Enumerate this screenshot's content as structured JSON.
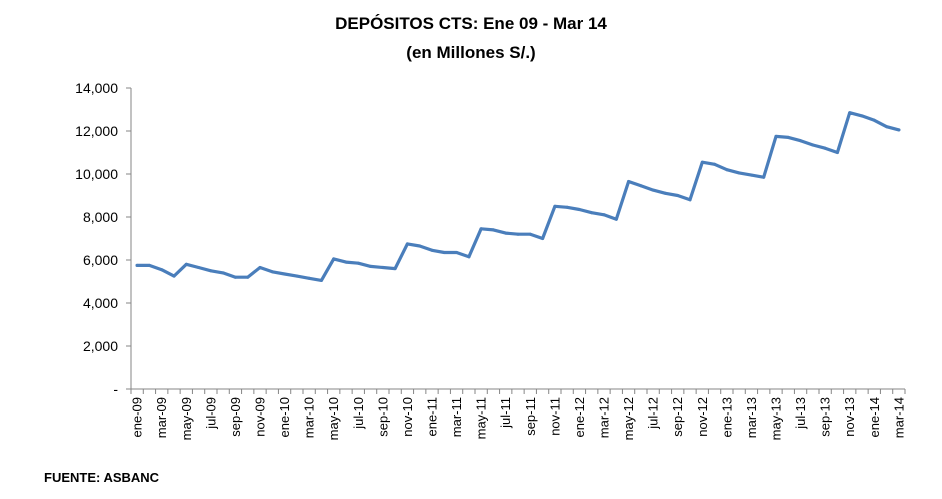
{
  "chart_data": {
    "type": "line",
    "title": "DEPÓSITOS CTS: Ene 09 - Mar 14",
    "subtitle": "(en Millones S/.)",
    "xlabel": "",
    "ylabel": "",
    "ylim": [
      0,
      14000
    ],
    "yticks": [
      0,
      2000,
      4000,
      6000,
      8000,
      10000,
      12000,
      14000
    ],
    "ytick_labels": [
      "-",
      "2,000",
      "4,000",
      "6,000",
      "8,000",
      "10,000",
      "12,000",
      "14,000"
    ],
    "grid": false,
    "line_color": "#4a7ebb",
    "x": [
      "ene-09",
      "feb-09",
      "mar-09",
      "abr-09",
      "may-09",
      "jun-09",
      "jul-09",
      "ago-09",
      "sep-09",
      "oct-09",
      "nov-09",
      "dic-09",
      "ene-10",
      "feb-10",
      "mar-10",
      "abr-10",
      "may-10",
      "jun-10",
      "jul-10",
      "ago-10",
      "sep-10",
      "oct-10",
      "nov-10",
      "dic-10",
      "ene-11",
      "feb-11",
      "mar-11",
      "abr-11",
      "may-11",
      "jun-11",
      "jul-11",
      "ago-11",
      "sep-11",
      "oct-11",
      "nov-11",
      "dic-11",
      "ene-12",
      "feb-12",
      "mar-12",
      "abr-12",
      "may-12",
      "jun-12",
      "jul-12",
      "ago-12",
      "sep-12",
      "oct-12",
      "nov-12",
      "dic-12",
      "ene-13",
      "feb-13",
      "mar-13",
      "abr-13",
      "may-13",
      "jun-13",
      "jul-13",
      "ago-13",
      "sep-13",
      "oct-13",
      "nov-13",
      "dic-13",
      "ene-14",
      "feb-14",
      "mar-14"
    ],
    "x_tick_labels": [
      "ene-09",
      "mar-09",
      "may-09",
      "jul-09",
      "sep-09",
      "nov-09",
      "ene-10",
      "mar-10",
      "may-10",
      "jul-10",
      "sep-10",
      "nov-10",
      "ene-11",
      "mar-11",
      "may-11",
      "jul-11",
      "sep-11",
      "nov-11",
      "ene-12",
      "mar-12",
      "may-12",
      "jul-12",
      "sep-12",
      "nov-12",
      "ene-13",
      "mar-13",
      "may-13",
      "jul-13",
      "sep-13",
      "nov-13",
      "ene-14",
      "mar-14"
    ],
    "series": [
      {
        "values": [
          5750,
          5750,
          5550,
          5250,
          5800,
          5650,
          5500,
          5400,
          5200,
          5200,
          5650,
          5450,
          5350,
          5250,
          5150,
          5050,
          6050,
          5900,
          5850,
          5700,
          5650,
          5600,
          6750,
          6650,
          6450,
          6350,
          6350,
          6150,
          7450,
          7400,
          7250,
          7200,
          7200,
          7000,
          8500,
          8450,
          8350,
          8200,
          8100,
          7900,
          9650,
          9450,
          9250,
          9100,
          9000,
          8800,
          10550,
          10450,
          10200,
          10050,
          9950,
          9850,
          11750,
          11700,
          11550,
          11350,
          11200,
          11000,
          12850,
          12700,
          12500,
          12200,
          12050
        ]
      }
    ]
  },
  "footer": {
    "source": "FUENTE: ASBANC"
  }
}
